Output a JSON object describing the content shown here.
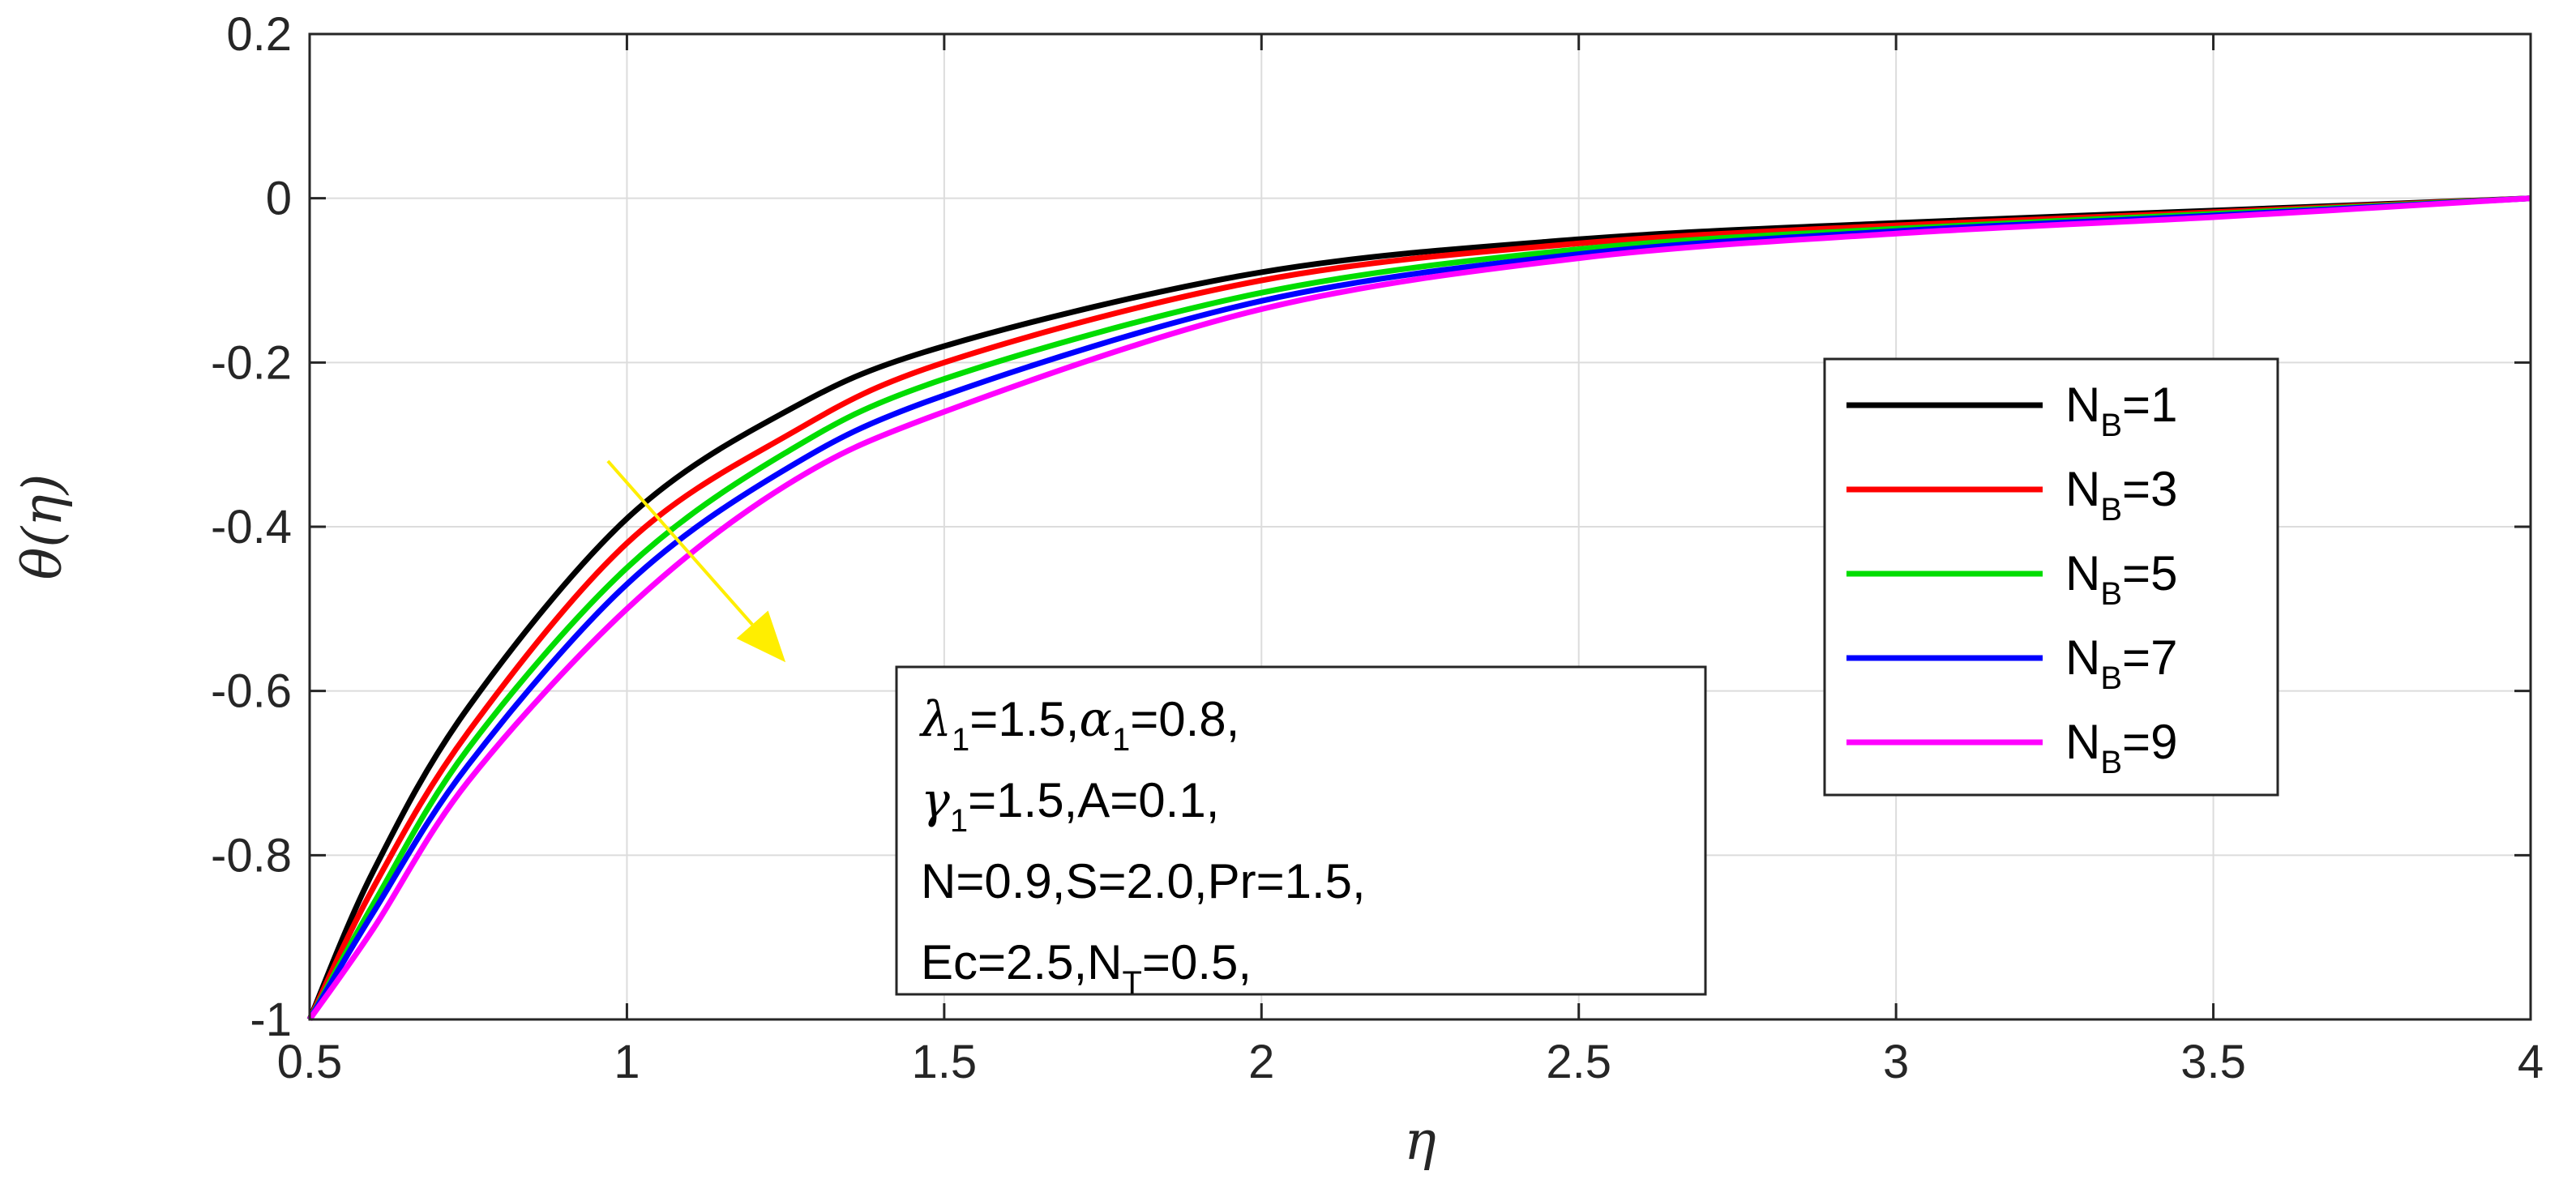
{
  "chart_data": {
    "type": "line",
    "xlabel": "η",
    "ylabel": "θ(η)",
    "xlim": [
      0.5,
      4
    ],
    "ylim": [
      -1,
      0.2
    ],
    "xticks": [
      "0.5",
      "1",
      "1.5",
      "2",
      "2.5",
      "3",
      "3.5",
      "4"
    ],
    "yticks": [
      "0.2",
      "0",
      "-0.2",
      "-0.4",
      "-0.6",
      "-0.8",
      "-1"
    ],
    "grid": true,
    "legend_position": "right",
    "x": [
      0.5,
      0.6,
      0.75,
      1.0,
      1.25,
      1.5,
      2.0,
      2.5,
      3.0,
      3.5,
      4.0
    ],
    "series": [
      {
        "name": "NB=1",
        "label_main": "N",
        "label_sub": "B",
        "label_value": "=1",
        "color": "#000000",
        "values": [
          -1.0,
          -0.82,
          -0.62,
          -0.39,
          -0.26,
          -0.18,
          -0.09,
          -0.05,
          -0.03,
          -0.015,
          0.0
        ]
      },
      {
        "name": "NB=3",
        "label_main": "N",
        "label_sub": "B",
        "label_value": "=3",
        "color": "#ff0000",
        "values": [
          -1.0,
          -0.84,
          -0.65,
          -0.42,
          -0.29,
          -0.2,
          -0.1,
          -0.055,
          -0.033,
          -0.017,
          0.0
        ]
      },
      {
        "name": "NB=5",
        "label_main": "N",
        "label_sub": "B",
        "label_value": "=5",
        "color": "#00dd00",
        "values": [
          -1.0,
          -0.86,
          -0.67,
          -0.45,
          -0.31,
          -0.22,
          -0.115,
          -0.062,
          -0.037,
          -0.019,
          0.0
        ]
      },
      {
        "name": "NB=7",
        "label_main": "N",
        "label_sub": "B",
        "label_value": "=7",
        "color": "#0000ff",
        "values": [
          -1.0,
          -0.87,
          -0.69,
          -0.47,
          -0.33,
          -0.24,
          -0.125,
          -0.068,
          -0.04,
          -0.021,
          0.0
        ]
      },
      {
        "name": "NB=9",
        "label_main": "N",
        "label_sub": "B",
        "label_value": "=9",
        "color": "#ff00ff",
        "values": [
          -1.0,
          -0.89,
          -0.71,
          -0.5,
          -0.35,
          -0.26,
          -0.135,
          -0.073,
          -0.043,
          -0.023,
          0.0
        ]
      }
    ],
    "trend_arrow": {
      "from": [
        0.97,
        -0.32
      ],
      "to": [
        1.25,
        -0.565
      ],
      "color": "#ffee00"
    },
    "params_box": [
      {
        "segments": [
          {
            "t": "λ",
            "greek": true
          },
          {
            "t": "1",
            "sub": true
          },
          {
            "t": "=1.5,"
          },
          {
            "t": "α",
            "greek": true
          },
          {
            "t": "1",
            "sub": true
          },
          {
            "t": "=0.8,"
          }
        ]
      },
      {
        "segments": [
          {
            "t": "γ",
            "greek": true
          },
          {
            "t": "1",
            "sub": true
          },
          {
            "t": "=1.5,A=0.1,"
          }
        ]
      },
      {
        "segments": [
          {
            "t": "N=0.9,S=2.0,Pr=1.5,"
          }
        ]
      },
      {
        "segments": [
          {
            "t": "Ec=2.5,N"
          },
          {
            "t": "T",
            "sub": true
          },
          {
            "t": "=0.5,"
          }
        ]
      }
    ]
  }
}
